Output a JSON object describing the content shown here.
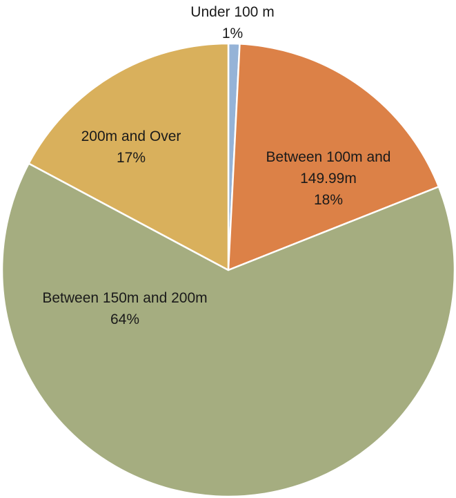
{
  "chart_data": {
    "type": "pie",
    "slices": [
      {
        "label_lines": [
          "Under 100 m"
        ],
        "percent_label": "1%",
        "value": 0.8,
        "color": "#95b3d7"
      },
      {
        "label_lines": [
          "Between  100m and",
          "149.99m"
        ],
        "percent_label": "18%",
        "value": 18.2,
        "color": "#dc8147"
      },
      {
        "label_lines": [
          "Between 150m and 200m"
        ],
        "percent_label": "64%",
        "value": 63.8,
        "color": "#a5ad80"
      },
      {
        "label_lines": [
          "200m and Over"
        ],
        "percent_label": "17%",
        "value": 17.2,
        "color": "#d9b05c"
      }
    ]
  }
}
